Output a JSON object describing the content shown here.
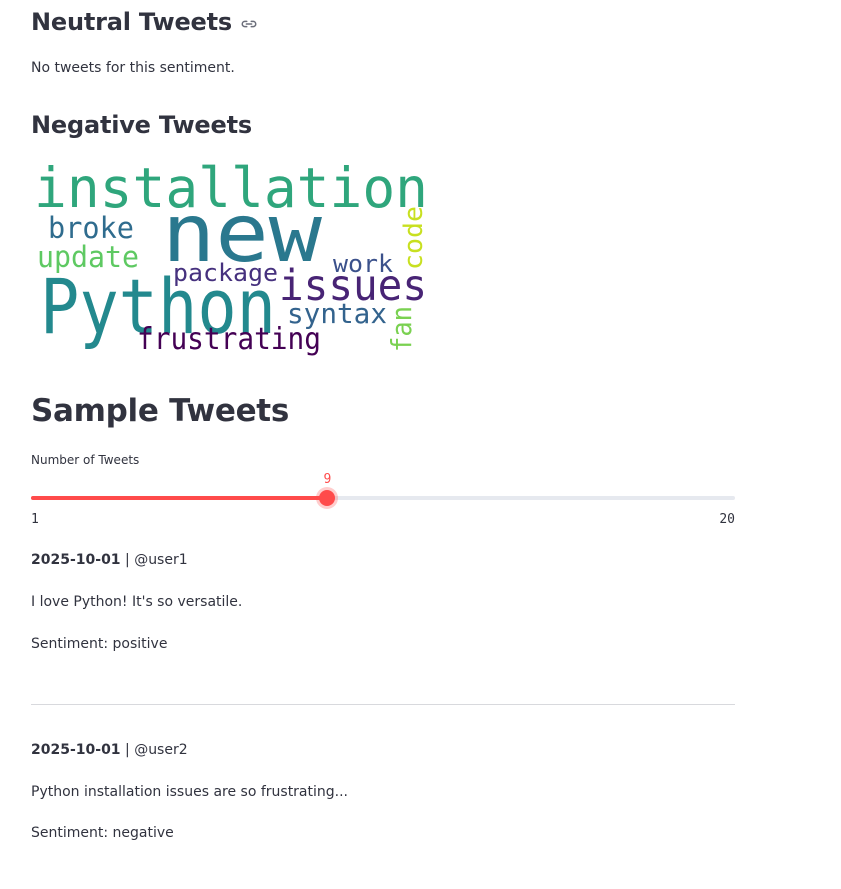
{
  "neutral": {
    "title": "Neutral Tweets",
    "empty_message": "No tweets for this sentiment."
  },
  "negative": {
    "title": "Negative Tweets",
    "wordcloud": [
      {
        "word": "installation",
        "color": "#2fa67c"
      },
      {
        "word": "new",
        "color": "#2a788e"
      },
      {
        "word": "Python",
        "color": "#23898e"
      },
      {
        "word": "issues",
        "color": "#482475"
      },
      {
        "word": "broke",
        "color": "#2f6c8e"
      },
      {
        "word": "update",
        "color": "#5ec962"
      },
      {
        "word": "package",
        "color": "#46317e"
      },
      {
        "word": "work",
        "color": "#3b518b"
      },
      {
        "word": "code",
        "color": "#c8e020"
      },
      {
        "word": "syntax",
        "color": "#33638d"
      },
      {
        "word": "frustrating",
        "color": "#440154"
      },
      {
        "word": "fan",
        "color": "#7ad151"
      }
    ]
  },
  "samples": {
    "title": "Sample Tweets",
    "slider": {
      "label": "Number of Tweets",
      "min": 1,
      "max": 20,
      "value": 9,
      "value_text": "9",
      "min_text": "1",
      "max_text": "20",
      "color": "#ff4b4b"
    },
    "tweets": [
      {
        "date": "2025-10-01",
        "separator": " | ",
        "user": "@user1",
        "text": "I love Python! It's so versatile.",
        "sentiment": "Sentiment: positive"
      },
      {
        "date": "2025-10-01",
        "separator": " | ",
        "user": "@user2",
        "text": "Python installation issues are so frustrating...",
        "sentiment": "Sentiment: negative"
      }
    ]
  }
}
